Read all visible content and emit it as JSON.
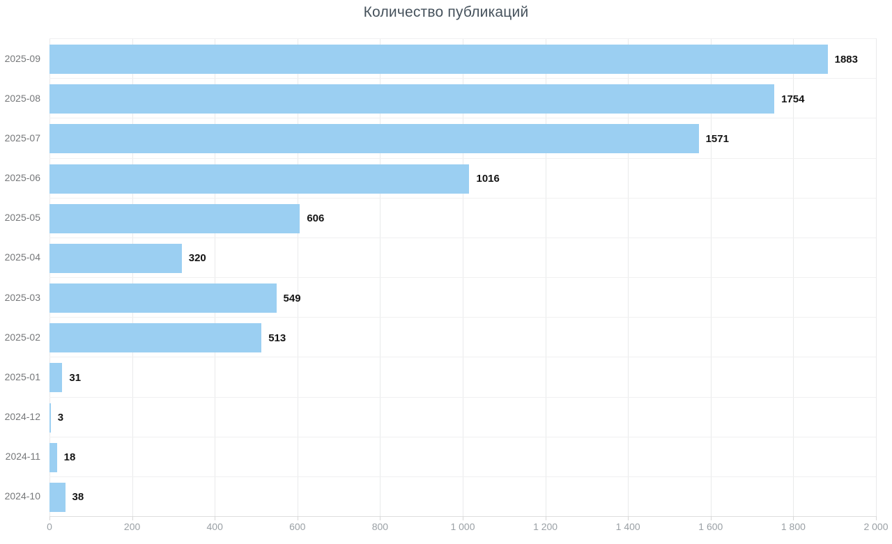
{
  "title": "Количество публикаций",
  "chart_data": {
    "type": "bar",
    "orientation": "horizontal",
    "title": "Количество публикаций",
    "categories": [
      "2025-09",
      "2025-08",
      "2025-07",
      "2025-06",
      "2025-05",
      "2025-04",
      "2025-03",
      "2025-02",
      "2025-01",
      "2024-12",
      "2024-11",
      "2024-10"
    ],
    "values": [
      1883,
      1754,
      1571,
      1016,
      606,
      320,
      549,
      513,
      31,
      3,
      18,
      38
    ],
    "xlim": [
      0,
      2000
    ],
    "x_tick_values": [
      0,
      200,
      400,
      600,
      800,
      1000,
      1200,
      1400,
      1600,
      1800,
      2000
    ],
    "x_tick_labels": [
      "0",
      "200",
      "400",
      "600",
      "800",
      "1 000",
      "1 200",
      "1 400",
      "1 600",
      "1 800",
      "2 000"
    ],
    "grid": "on",
    "legend": "none",
    "xlabel": "",
    "ylabel": ""
  },
  "colors": {
    "bar_fill": "#9bcff2",
    "value_label": "#141414",
    "category_label": "#757779",
    "tick_label": "#9aa0a5",
    "title": "#46525c",
    "gridline_vertical": "#e9eaeb",
    "gridline_horizontal": "#f0f0f1",
    "background": "#ffffff"
  }
}
